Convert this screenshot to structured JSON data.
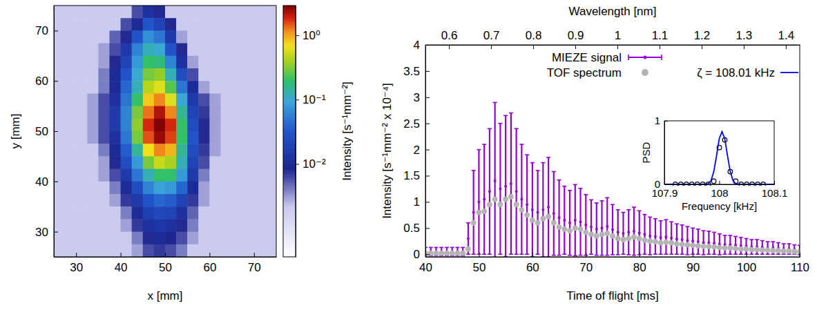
{
  "chart_data": [
    {
      "type": "heatmap",
      "xlabel": "x [mm]",
      "ylabel": "y [mm]",
      "xlim": [
        25,
        75
      ],
      "ylim": [
        25,
        75
      ],
      "xticks": [
        30,
        40,
        50,
        60,
        70
      ],
      "yticks": [
        30,
        40,
        50,
        60,
        70
      ],
      "log": true,
      "x": [
        26.25,
        28.75,
        31.25,
        33.75,
        36.25,
        38.75,
        41.25,
        43.75,
        46.25,
        48.75,
        51.25,
        53.75,
        56.25,
        58.75,
        61.25,
        63.75,
        66.25,
        68.75,
        71.25,
        73.75
      ],
      "y": [
        73.75,
        71.25,
        68.75,
        66.25,
        63.75,
        61.25,
        58.75,
        56.25,
        53.75,
        51.25,
        48.75,
        46.25,
        43.75,
        41.25,
        38.75,
        36.25,
        33.75,
        31.25,
        28.75,
        26.25
      ],
      "z": [
        [
          0.002,
          0.002,
          0.002,
          0.002,
          0.002,
          0.002,
          0.002,
          0.006,
          0.012,
          0.008,
          0.002,
          0.002,
          0.002,
          0.002,
          0.002,
          0.002,
          0.002,
          0.002,
          0.002,
          0.002
        ],
        [
          0.002,
          0.002,
          0.002,
          0.002,
          0.002,
          0.002,
          0.006,
          0.01,
          0.03,
          0.02,
          0.008,
          0.002,
          0.002,
          0.002,
          0.002,
          0.002,
          0.002,
          0.002,
          0.002,
          0.002
        ],
        [
          0.002,
          0.002,
          0.002,
          0.002,
          0.002,
          0.005,
          0.008,
          0.03,
          0.07,
          0.05,
          0.015,
          0.003,
          0.002,
          0.002,
          0.002,
          0.002,
          0.002,
          0.002,
          0.002,
          0.002
        ],
        [
          0.002,
          0.002,
          0.002,
          0.002,
          0.003,
          0.006,
          0.015,
          0.06,
          0.12,
          0.1,
          0.03,
          0.008,
          0.002,
          0.002,
          0.002,
          0.002,
          0.002,
          0.002,
          0.002,
          0.002
        ],
        [
          0.002,
          0.002,
          0.002,
          0.002,
          0.003,
          0.008,
          0.02,
          0.08,
          0.2,
          0.18,
          0.06,
          0.012,
          0.003,
          0.002,
          0.002,
          0.002,
          0.002,
          0.002,
          0.002,
          0.002
        ],
        [
          0.002,
          0.002,
          0.002,
          0.002,
          0.004,
          0.01,
          0.03,
          0.1,
          0.3,
          0.35,
          0.12,
          0.025,
          0.006,
          0.002,
          0.002,
          0.002,
          0.002,
          0.002,
          0.002,
          0.002
        ],
        [
          0.002,
          0.002,
          0.002,
          0.002,
          0.004,
          0.01,
          0.04,
          0.12,
          0.45,
          0.6,
          0.25,
          0.05,
          0.01,
          0.003,
          0.002,
          0.002,
          0.002,
          0.002,
          0.002,
          0.002
        ],
        [
          0.002,
          0.002,
          0.002,
          0.003,
          0.006,
          0.012,
          0.05,
          0.2,
          0.8,
          1.2,
          0.6,
          0.1,
          0.015,
          0.006,
          0.003,
          0.002,
          0.002,
          0.002,
          0.002,
          0.002
        ],
        [
          0.002,
          0.002,
          0.002,
          0.003,
          0.006,
          0.015,
          0.06,
          0.3,
          1.3,
          2.2,
          1.2,
          0.15,
          0.02,
          0.007,
          0.003,
          0.002,
          0.002,
          0.002,
          0.002,
          0.002
        ],
        [
          0.002,
          0.002,
          0.002,
          0.003,
          0.006,
          0.015,
          0.06,
          0.35,
          1.8,
          2.8,
          1.8,
          0.2,
          0.025,
          0.008,
          0.003,
          0.002,
          0.002,
          0.002,
          0.002,
          0.002
        ],
        [
          0.002,
          0.002,
          0.002,
          0.003,
          0.006,
          0.012,
          0.05,
          0.3,
          1.5,
          2.5,
          1.6,
          0.2,
          0.03,
          0.008,
          0.003,
          0.002,
          0.002,
          0.002,
          0.002,
          0.002
        ],
        [
          0.002,
          0.002,
          0.002,
          0.002,
          0.004,
          0.01,
          0.035,
          0.15,
          0.7,
          1.2,
          0.9,
          0.15,
          0.025,
          0.007,
          0.003,
          0.002,
          0.002,
          0.002,
          0.002,
          0.002
        ],
        [
          0.002,
          0.002,
          0.002,
          0.002,
          0.003,
          0.008,
          0.025,
          0.08,
          0.3,
          0.5,
          0.4,
          0.12,
          0.02,
          0.006,
          0.002,
          0.002,
          0.002,
          0.002,
          0.002,
          0.002
        ],
        [
          0.002,
          0.002,
          0.002,
          0.002,
          0.003,
          0.006,
          0.015,
          0.05,
          0.12,
          0.2,
          0.2,
          0.08,
          0.015,
          0.004,
          0.002,
          0.002,
          0.002,
          0.002,
          0.002,
          0.002
        ],
        [
          0.002,
          0.002,
          0.002,
          0.002,
          0.002,
          0.004,
          0.01,
          0.025,
          0.06,
          0.09,
          0.08,
          0.04,
          0.01,
          0.003,
          0.002,
          0.002,
          0.002,
          0.002,
          0.002,
          0.002
        ],
        [
          0.002,
          0.002,
          0.002,
          0.002,
          0.002,
          0.003,
          0.007,
          0.015,
          0.03,
          0.04,
          0.035,
          0.02,
          0.007,
          0.003,
          0.002,
          0.002,
          0.002,
          0.002,
          0.002,
          0.002
        ],
        [
          0.002,
          0.002,
          0.002,
          0.002,
          0.002,
          0.002,
          0.004,
          0.01,
          0.018,
          0.022,
          0.02,
          0.012,
          0.005,
          0.002,
          0.002,
          0.002,
          0.002,
          0.002,
          0.002,
          0.002
        ],
        [
          0.002,
          0.002,
          0.002,
          0.002,
          0.002,
          0.002,
          0.003,
          0.007,
          0.012,
          0.014,
          0.012,
          0.008,
          0.004,
          0.002,
          0.002,
          0.002,
          0.002,
          0.002,
          0.002,
          0.002
        ],
        [
          0.002,
          0.002,
          0.002,
          0.002,
          0.002,
          0.002,
          0.002,
          0.004,
          0.008,
          0.01,
          0.009,
          0.006,
          0.003,
          0.002,
          0.002,
          0.002,
          0.002,
          0.002,
          0.002,
          0.002
        ],
        [
          0.002,
          0.002,
          0.002,
          0.002,
          0.002,
          0.002,
          0.002,
          0.003,
          0.006,
          0.007,
          0.006,
          0.004,
          0.002,
          0.002,
          0.002,
          0.002,
          0.002,
          0.002,
          0.002,
          0.002
        ]
      ],
      "colorbar": {
        "label": "Intensity [s⁻¹mm⁻²]",
        "range": [
          0.00036,
          2.9
        ],
        "ticks": [
          {
            "value": 1,
            "label": "10⁰"
          },
          {
            "value": 0.1,
            "label": "10⁻¹"
          },
          {
            "value": 0.01,
            "label": "10⁻²"
          }
        ]
      }
    },
    {
      "type": "line",
      "xlabel": "Time of flight [ms]",
      "x2label": "Wavelength [nm]",
      "ylabel": "Intensity [s⁻¹mm⁻² x 10⁻⁴]",
      "xlim": [
        40,
        110
      ],
      "xticks": [
        40,
        50,
        60,
        70,
        80,
        90,
        100,
        110
      ],
      "x2lim": [
        0.544,
        1.433
      ],
      "x2ticks": [
        0.6,
        0.7,
        0.8,
        0.9,
        1,
        1.1,
        1.2,
        1.3,
        1.4
      ],
      "ylim": [
        -0.05,
        4
      ],
      "yticks": [
        0,
        0.5,
        1,
        1.5,
        2,
        2.5,
        3,
        3.5,
        4
      ],
      "legend": "top",
      "x": [
        40,
        41,
        42,
        43,
        44,
        45,
        46,
        47,
        48,
        49,
        50,
        51,
        52,
        53,
        54,
        55,
        56,
        57,
        58,
        59,
        60,
        61,
        62,
        63,
        64,
        65,
        66,
        67,
        68,
        69,
        70,
        71,
        72,
        73,
        74,
        75,
        76,
        77,
        78,
        79,
        80,
        81,
        82,
        83,
        84,
        85,
        86,
        87,
        88,
        89,
        90,
        91,
        92,
        93,
        94,
        95,
        96,
        97,
        98,
        99,
        100,
        101,
        102,
        103,
        104,
        105,
        106,
        107,
        108,
        109,
        110
      ],
      "series": [
        {
          "name": "MIEZE signal",
          "color": "#9400d3",
          "marker": "circle",
          "values": [
            0.05,
            0.05,
            0.05,
            0.05,
            0.05,
            0.05,
            0.05,
            0.05,
            0.3,
            0.8,
            1.0,
            1.05,
            1.2,
            1.4,
            1.25,
            1.3,
            1.35,
            1.2,
            1.05,
            0.95,
            0.85,
            0.8,
            0.85,
            0.9,
            0.78,
            0.7,
            0.65,
            0.6,
            0.65,
            0.62,
            0.56,
            0.52,
            0.48,
            0.5,
            0.53,
            0.47,
            0.42,
            0.4,
            0.42,
            0.44,
            0.41,
            0.38,
            0.35,
            0.34,
            0.32,
            0.33,
            0.31,
            0.29,
            0.28,
            0.26,
            0.25,
            0.24,
            0.22,
            0.22,
            0.21,
            0.19,
            0.18,
            0.18,
            0.17,
            0.16,
            0.15,
            0.14,
            0.14,
            0.13,
            0.12,
            0.12,
            0.11,
            0.1,
            0.1,
            0.09,
            0.08
          ],
          "errors": [
            0.08,
            0.08,
            0.08,
            0.08,
            0.08,
            0.08,
            0.08,
            0.08,
            0.3,
            0.8,
            1.0,
            1.05,
            1.2,
            1.5,
            1.25,
            1.35,
            1.35,
            1.2,
            1.05,
            0.95,
            0.9,
            0.8,
            0.9,
            0.95,
            0.8,
            0.72,
            0.65,
            0.62,
            0.68,
            0.64,
            0.58,
            0.52,
            0.5,
            0.52,
            0.55,
            0.48,
            0.43,
            0.4,
            0.43,
            0.46,
            0.42,
            0.38,
            0.36,
            0.34,
            0.32,
            0.33,
            0.31,
            0.29,
            0.28,
            0.27,
            0.25,
            0.24,
            0.23,
            0.22,
            0.21,
            0.2,
            0.18,
            0.18,
            0.17,
            0.16,
            0.15,
            0.14,
            0.14,
            0.13,
            0.12,
            0.12,
            0.11,
            0.1,
            0.1,
            0.09,
            0.09
          ]
        },
        {
          "name": "TOF spectrum",
          "color": "#b4b4b4",
          "marker": "circle",
          "values": [
            0.02,
            0.02,
            0.02,
            0.02,
            0.02,
            0.02,
            0.02,
            0.02,
            0.1,
            0.6,
            0.8,
            0.82,
            0.95,
            1.05,
            0.95,
            1.05,
            1.1,
            0.95,
            0.85,
            0.75,
            0.65,
            0.6,
            0.68,
            0.72,
            0.6,
            0.52,
            0.48,
            0.45,
            0.5,
            0.48,
            0.42,
            0.38,
            0.35,
            0.38,
            0.4,
            0.35,
            0.3,
            0.28,
            0.3,
            0.33,
            0.3,
            0.27,
            0.25,
            0.24,
            0.22,
            0.23,
            0.22,
            0.2,
            0.19,
            0.18,
            0.17,
            0.16,
            0.15,
            0.15,
            0.14,
            0.13,
            0.12,
            0.12,
            0.11,
            0.1,
            0.1,
            0.09,
            0.09,
            0.08,
            0.08,
            0.07,
            0.07,
            0.06,
            0.06,
            0.05,
            0.05
          ]
        }
      ]
    },
    {
      "type": "scatter",
      "xlabel": "Frequency [kHz]",
      "ylabel": "PSD",
      "xlim": [
        107.9,
        108.1
      ],
      "xticks": [
        107.9,
        108,
        108.1
      ],
      "ylim": [
        0,
        1
      ],
      "yticks": [
        0,
        1
      ],
      "series": [
        {
          "color": "#000000",
          "marker": "circle",
          "x": [
            107.92,
            107.93,
            107.94,
            107.95,
            107.96,
            107.97,
            107.98,
            107.99,
            108.0,
            108.01,
            108.02,
            108.03,
            108.04,
            108.05,
            108.06,
            108.07,
            108.08
          ],
          "values": [
            0,
            0,
            0,
            0,
            0,
            0,
            0,
            0.05,
            0.58,
            0.7,
            0.2,
            0.05,
            0,
            0,
            0,
            0,
            0
          ]
        },
        {
          "name": "ζ = 108.01 kHz",
          "color": "#0000ff",
          "type": "line",
          "line_style": "solid",
          "x": [
            107.9,
            107.97,
            107.98,
            107.985,
            107.99,
            107.995,
            108.0,
            108.005,
            108.01,
            108.015,
            108.02,
            108.025,
            108.03,
            108.04,
            108.1
          ],
          "values": [
            0,
            0,
            0.01,
            0.06,
            0.2,
            0.45,
            0.72,
            0.83,
            0.72,
            0.45,
            0.2,
            0.06,
            0.01,
            0,
            0
          ]
        }
      ]
    }
  ]
}
